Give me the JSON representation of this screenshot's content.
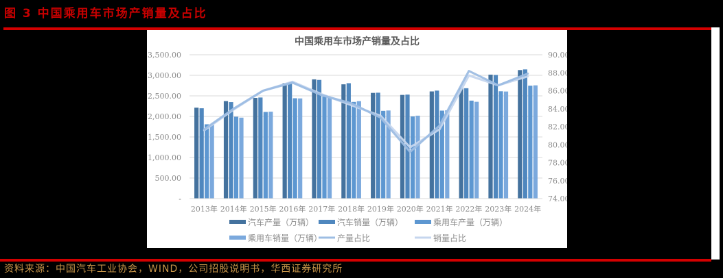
{
  "figure": {
    "title": "图 3  中国乘用车市场产销量及占比",
    "source": "资料来源：中国汽车工业协会，WIND，公司招股说明书，华西证券研究所"
  },
  "colors": {
    "accent_red": "#d40000",
    "source_text": "#c8964a",
    "series": [
      "#44729e",
      "#4f87be",
      "#5d97d1",
      "#7ba9dd",
      "#9dbde3",
      "#c5d6ee"
    ]
  },
  "chart_data": {
    "type": "bar",
    "title": "中国乘用车市场产销量及占比",
    "xlabel": "",
    "ylabel": "",
    "categories": [
      "2013年",
      "2014年",
      "2015年",
      "2016年",
      "2017年",
      "2018年",
      "2019年",
      "2020年",
      "2021年",
      "2022年",
      "2023年",
      "2024年"
    ],
    "left_axis": {
      "ylim": [
        0,
        3500
      ],
      "ticks": [
        "-",
        "500.00",
        "1,000.00",
        "1,500.00",
        "2,000.00",
        "2,500.00",
        "3,000.00",
        "3,500.00"
      ],
      "tick_values": [
        0,
        500,
        1000,
        1500,
        2000,
        2500,
        3000,
        3500
      ]
    },
    "right_axis": {
      "ylim": [
        74,
        90
      ],
      "ticks": [
        "74.00",
        "76.00",
        "78.00",
        "80.00",
        "82.00",
        "84.00",
        "86.00",
        "88.00",
        "90.00"
      ],
      "tick_values": [
        74,
        76,
        78,
        80,
        82,
        84,
        86,
        88,
        90
      ]
    },
    "grid": true,
    "legend_position": "bottom",
    "series": [
      {
        "name": "汽车产量（万辆）",
        "type": "bar",
        "axis": "left",
        "color": "#44729e",
        "values": [
          2212,
          2372,
          2450,
          2812,
          2902,
          2781,
          2572,
          2523,
          2608,
          2702,
          3016,
          3128
        ]
      },
      {
        "name": "汽车销量（万辆）",
        "type": "bar",
        "axis": "left",
        "color": "#4f87be",
        "values": [
          2198,
          2349,
          2460,
          2803,
          2888,
          2808,
          2577,
          2531,
          2628,
          2686,
          3009,
          3144
        ]
      },
      {
        "name": "乘用车产量（万辆）",
        "type": "bar",
        "axis": "left",
        "color": "#5d97d1",
        "values": [
          1808,
          1992,
          2108,
          2442,
          2481,
          2353,
          2136,
          1999,
          2141,
          2384,
          2612,
          2748
        ]
      },
      {
        "name": "乘用车销量（万辆）",
        "type": "bar",
        "axis": "left",
        "color": "#7ba9dd",
        "values": [
          1793,
          1970,
          2115,
          2438,
          2472,
          2371,
          2144,
          2018,
          2148,
          2356,
          2606,
          2756
        ]
      },
      {
        "name": "产量占比",
        "type": "line",
        "axis": "right",
        "color": "#9dbde3",
        "values": [
          81.7,
          84.0,
          86.0,
          86.9,
          85.5,
          84.6,
          83.0,
          79.2,
          82.1,
          88.2,
          86.6,
          87.9
        ]
      },
      {
        "name": "销量占比",
        "type": "line",
        "axis": "right",
        "color": "#c5d6ee",
        "values": [
          81.6,
          83.9,
          86.0,
          87.0,
          85.6,
          84.4,
          83.2,
          79.7,
          81.7,
          87.7,
          86.6,
          87.6
        ]
      }
    ]
  }
}
